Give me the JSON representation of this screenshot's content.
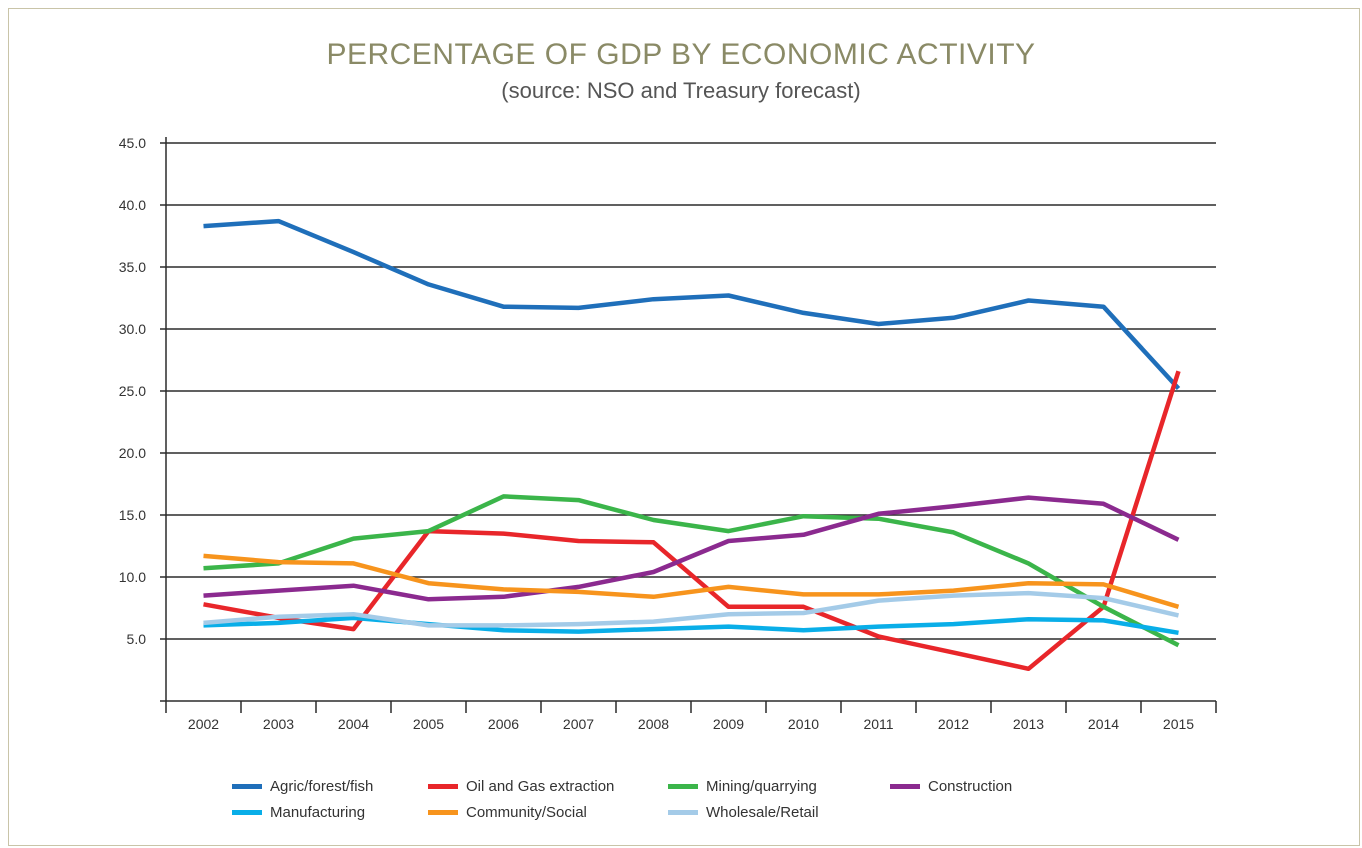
{
  "chart_data": {
    "type": "line",
    "title": "PERCENTAGE OF GDP BY ECONOMIC ACTIVITY",
    "subtitle": "(source: NSO and Treasury forecast)",
    "xlabel": "",
    "ylabel": "",
    "x": [
      "2002",
      "2003",
      "2004",
      "2005",
      "2006",
      "2007",
      "2008",
      "2009",
      "2010",
      "2011",
      "2012",
      "2013",
      "2014",
      "2015"
    ],
    "ylim": [
      0,
      45
    ],
    "yticks": [
      "5.0",
      "10.0",
      "15.0",
      "20.0",
      "25.0",
      "30.0",
      "35.0",
      "40.0",
      "45.0"
    ],
    "ytick_values": [
      5,
      10,
      15,
      20,
      25,
      30,
      35,
      40,
      45
    ],
    "grid": "horizontal",
    "legend_position": "bottom",
    "series": [
      {
        "name": "Agric/forest/fish",
        "color": "#1f6fba",
        "values": [
          38.3,
          38.7,
          36.2,
          33.6,
          31.8,
          31.7,
          32.4,
          32.7,
          31.3,
          30.4,
          30.9,
          32.3,
          31.8,
          25.2
        ]
      },
      {
        "name": "Oil and Gas extraction",
        "color": "#e8262a",
        "values": [
          7.8,
          6.7,
          5.8,
          13.7,
          13.5,
          12.9,
          12.8,
          7.6,
          7.6,
          5.2,
          3.9,
          2.6,
          7.6,
          26.6
        ]
      },
      {
        "name": "Mining/quarrying",
        "color": "#3bb54a",
        "values": [
          10.7,
          11.1,
          13.1,
          13.7,
          16.5,
          16.2,
          14.6,
          13.7,
          14.9,
          14.7,
          13.6,
          11.1,
          7.6,
          4.5
        ]
      },
      {
        "name": "Construction",
        "color": "#8b2a8f",
        "values": [
          8.5,
          8.9,
          9.3,
          8.2,
          8.4,
          9.2,
          10.4,
          12.9,
          13.4,
          15.1,
          15.7,
          16.4,
          15.9,
          13.0
        ]
      },
      {
        "name": "Manufacturing",
        "color": "#09aee8",
        "values": [
          6.1,
          6.3,
          6.7,
          6.2,
          5.7,
          5.6,
          5.8,
          6.0,
          5.7,
          6.0,
          6.2,
          6.6,
          6.5,
          5.5
        ]
      },
      {
        "name": "Community/Social",
        "color": "#f7941d",
        "values": [
          11.7,
          11.2,
          11.1,
          9.5,
          9.0,
          8.8,
          8.4,
          9.2,
          8.6,
          8.6,
          8.9,
          9.5,
          9.4,
          7.6
        ]
      },
      {
        "name": "Wholesale/Retail",
        "color": "#a4cbe8",
        "values": [
          6.3,
          6.8,
          7.0,
          6.1,
          6.1,
          6.2,
          6.4,
          7.0,
          7.1,
          8.1,
          8.5,
          8.7,
          8.3,
          6.9
        ]
      }
    ]
  }
}
